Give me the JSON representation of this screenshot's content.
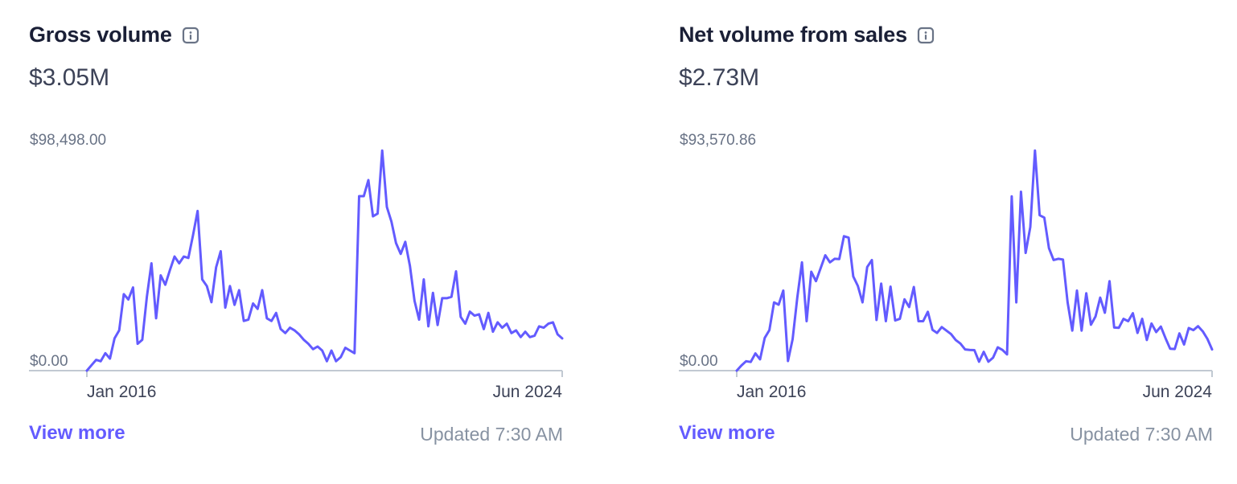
{
  "cards": [
    {
      "title": "Gross volume",
      "total": "$3.05M",
      "view_more_label": "View more",
      "updated_text": "Updated 7:30 AM",
      "icons": {
        "info": "info-icon"
      },
      "chart_data": {
        "type": "line",
        "ymax_label": "$98,498.00",
        "ymin_label": "$0.00",
        "ylim": [
          0,
          98498
        ],
        "x_tick_labels": [
          "Jan 2016",
          "Jun 2024"
        ],
        "x_range": [
          "Jan 2016",
          "Jun 2024"
        ],
        "line_color": "#635bff",
        "values": [
          0,
          2400,
          4800,
          4200,
          7800,
          5400,
          14400,
          18000,
          34200,
          31800,
          37200,
          12000,
          13800,
          33000,
          48000,
          23400,
          42600,
          38400,
          45000,
          51000,
          48000,
          51000,
          50400,
          60600,
          71400,
          40800,
          37800,
          30600,
          46200,
          53400,
          28200,
          37800,
          29400,
          36000,
          22200,
          22800,
          30000,
          27600,
          36000,
          23400,
          22200,
          25800,
          18600,
          16800,
          19200,
          18000,
          16200,
          13800,
          12000,
          9600,
          10800,
          9000,
          4200,
          9000,
          4200,
          6000,
          10200,
          9000,
          7800,
          78000,
          78000,
          85200,
          69000,
          70200,
          98400,
          73200,
          66600,
          57000,
          52200,
          57600,
          46800,
          31200,
          22800,
          40800,
          19800,
          34800,
          20400,
          32400,
          32400,
          33000,
          44400,
          24000,
          21000,
          26400,
          24600,
          25200,
          18600,
          25800,
          17400,
          21600,
          19200,
          21000,
          16800,
          18000,
          15000,
          17400,
          15000,
          15600,
          19800,
          19200,
          21000,
          21600,
          16200,
          14400
        ]
      }
    },
    {
      "title": "Net volume from sales",
      "total": "$2.73M",
      "view_more_label": "View more",
      "updated_text": "Updated 7:30 AM",
      "icons": {
        "info": "info-icon"
      },
      "chart_data": {
        "type": "line",
        "ymax_label": "$93,570.86",
        "ymin_label": "$0.00",
        "ylim": [
          0,
          93570.86
        ],
        "x_tick_labels": [
          "Jan 2016",
          "Jun 2024"
        ],
        "x_range": [
          "Jan 2016",
          "Jun 2024"
        ],
        "line_color": "#635bff",
        "values": [
          0,
          2200,
          4000,
          3700,
          7300,
          4800,
          13900,
          17200,
          29000,
          28000,
          34000,
          4100,
          13400,
          31000,
          46000,
          21000,
          42000,
          38000,
          43500,
          49000,
          46000,
          47500,
          47400,
          57100,
          56500,
          40000,
          36000,
          29000,
          44000,
          47000,
          21500,
          37000,
          21000,
          35700,
          21300,
          22000,
          30300,
          27000,
          35500,
          21000,
          21000,
          25000,
          17300,
          16000,
          18500,
          17000,
          15500,
          13000,
          11500,
          9000,
          8800,
          8700,
          3800,
          8000,
          3800,
          5500,
          9900,
          8800,
          6900,
          74000,
          29000,
          76000,
          50000,
          61000,
          93500,
          66000,
          65000,
          52000,
          47000,
          47500,
          47200,
          29000,
          17000,
          34000,
          17000,
          32900,
          19500,
          23000,
          31000,
          24600,
          38000,
          18300,
          18200,
          22000,
          21000,
          24400,
          16000,
          22000,
          13000,
          20000,
          16400,
          18700,
          13800,
          9300,
          9200,
          15800,
          11100,
          18100,
          17200,
          18900,
          16700,
          13500,
          9000
        ]
      }
    }
  ]
}
